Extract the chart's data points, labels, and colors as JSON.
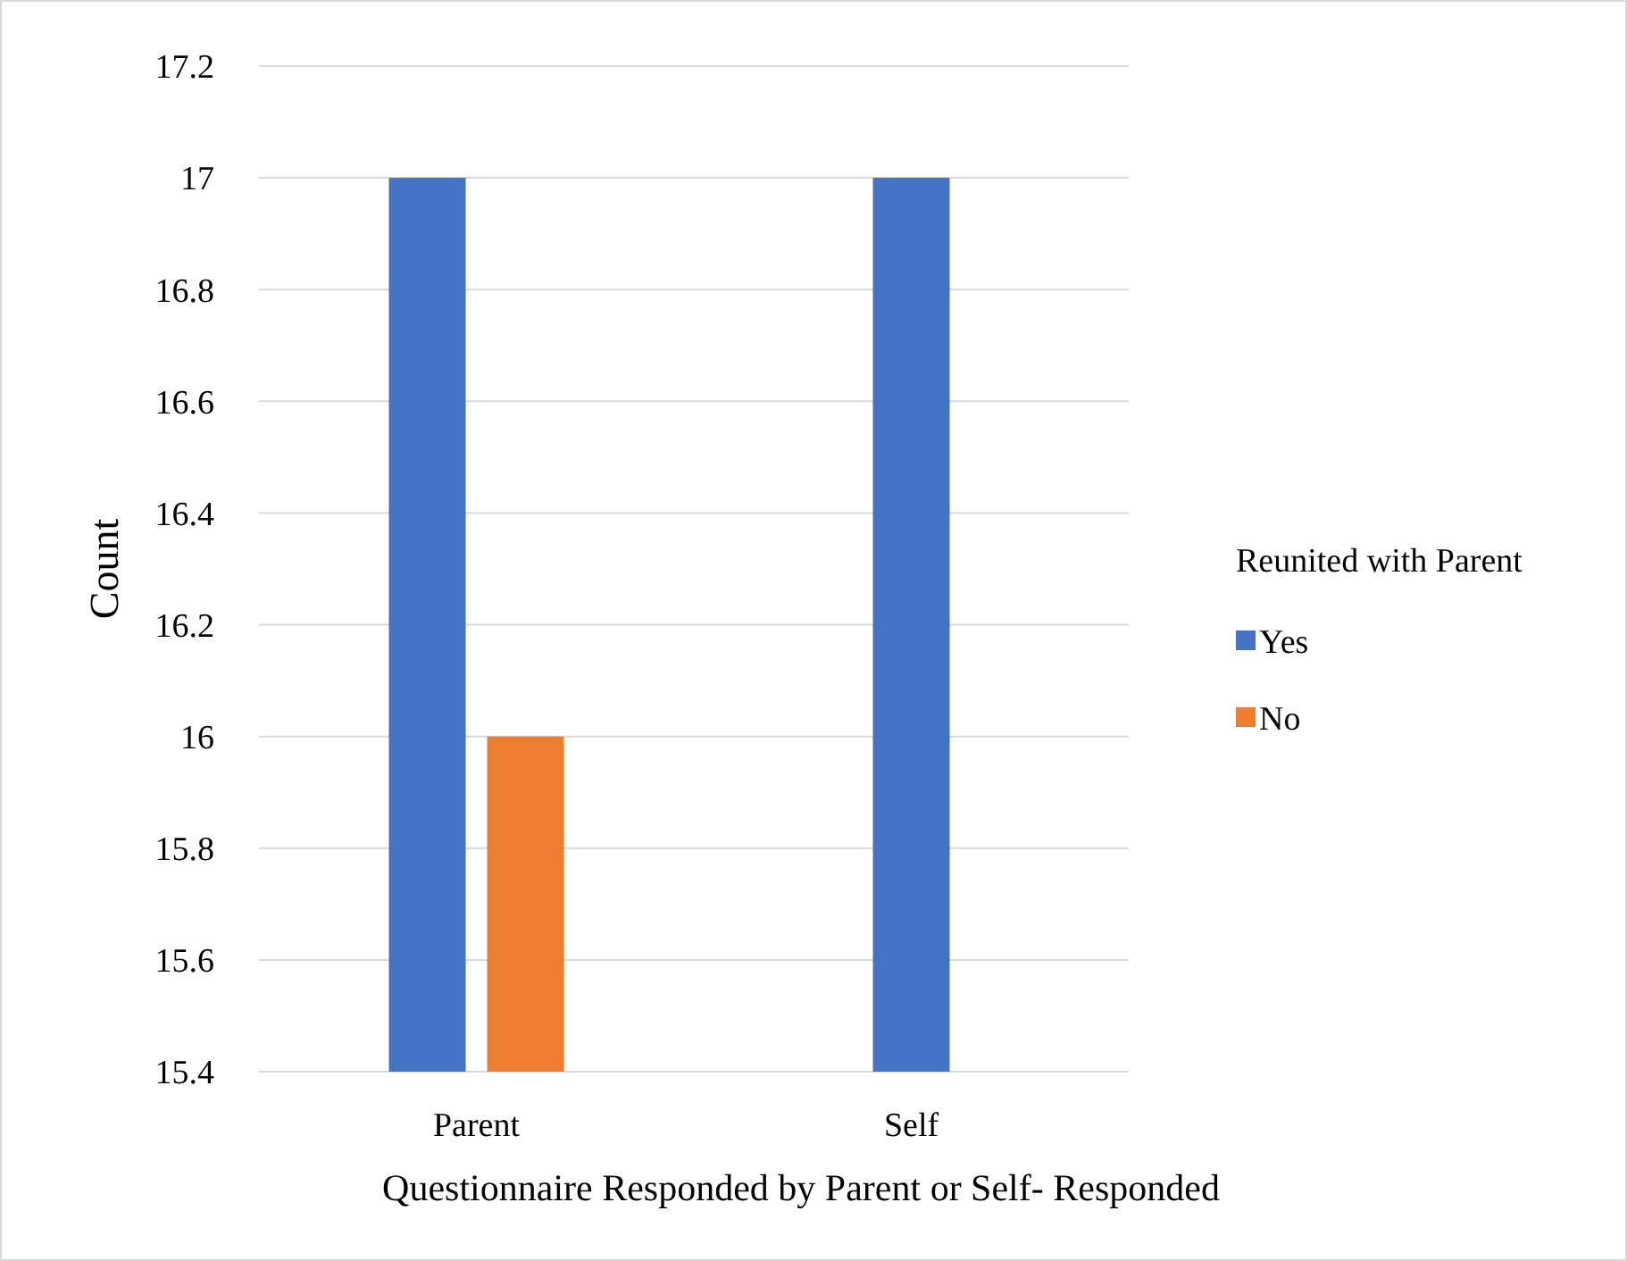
{
  "chart_data": {
    "type": "bar",
    "xlabel": "Questionnaire Responded by Parent or Self- Responded",
    "ylabel": "Count",
    "legend_title": "Reunited with Parent",
    "categories": [
      "Parent",
      "Self"
    ],
    "series": [
      {
        "name": "Yes",
        "color": "#4472c4",
        "values": [
          17,
          17
        ]
      },
      {
        "name": "No",
        "color": "#ed7d31",
        "values": [
          16,
          null
        ]
      }
    ],
    "ylim": [
      15.4,
      17.2
    ],
    "yticks": [
      15.4,
      15.6,
      15.8,
      16,
      16.2,
      16.4,
      16.6,
      16.8,
      17,
      17.2
    ],
    "grid": "y",
    "legend": "right"
  }
}
